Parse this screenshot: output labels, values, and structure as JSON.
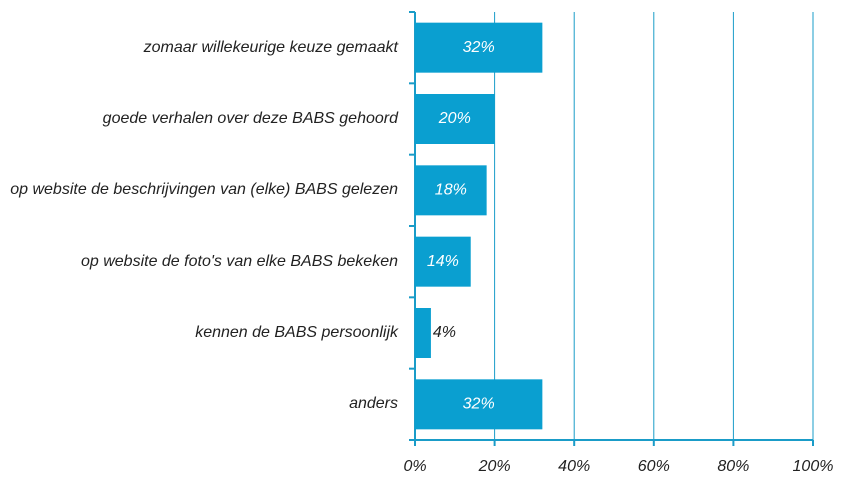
{
  "chart_data": {
    "type": "barh",
    "categories": [
      "zomaar willekeurige keuze gemaakt",
      "goede verhalen over deze BABS gehoord",
      "op website de beschrijvingen van (elke) BABS gelezen",
      "op website de foto's van elke BABS bekeken",
      "kennen de BABS persoonlijk",
      "anders"
    ],
    "values": [
      32,
      20,
      18,
      14,
      4,
      32
    ],
    "value_labels": [
      "32%",
      "20%",
      "18%",
      "14%",
      "4%",
      "32%"
    ],
    "color": "#0a9fd0",
    "xlim": [
      0,
      100
    ],
    "xticks": [
      {
        "value": 0,
        "label": "0%"
      },
      {
        "value": 20,
        "label": "20%"
      },
      {
        "value": 40,
        "label": "40%"
      },
      {
        "value": 60,
        "label": "60%"
      },
      {
        "value": 80,
        "label": "80%"
      },
      {
        "value": 100,
        "label": "100%"
      }
    ],
    "grid": true
  }
}
